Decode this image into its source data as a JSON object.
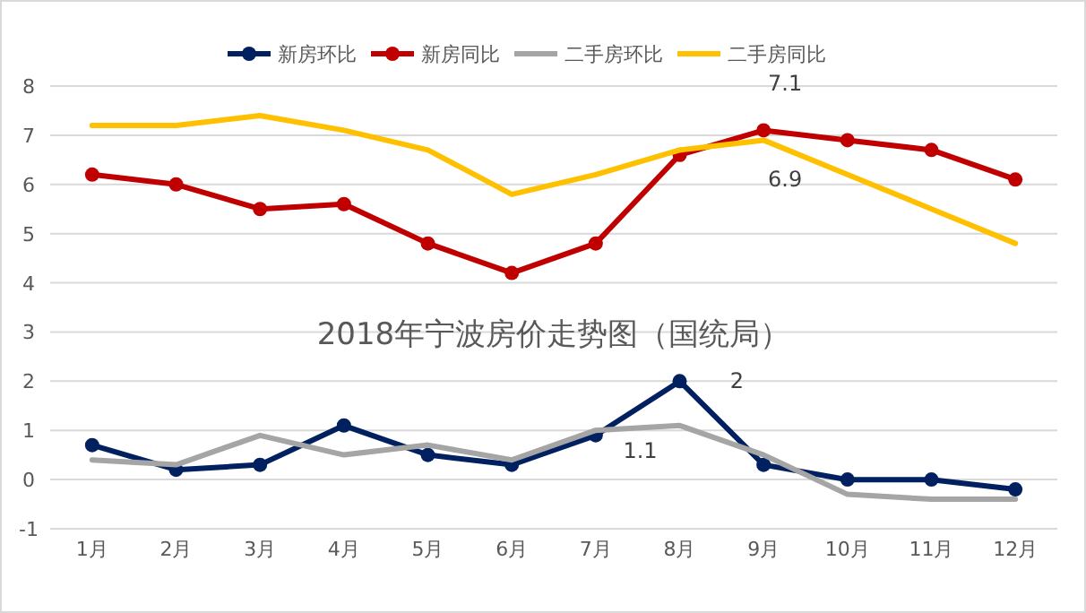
{
  "chart_data": {
    "type": "line",
    "title": "2018年宁波房价走势图（国统局）",
    "categories": [
      "1月",
      "2月",
      "3月",
      "4月",
      "5月",
      "6月",
      "7月",
      "8月",
      "9月",
      "10月",
      "11月",
      "12月"
    ],
    "series": [
      {
        "name": "新房环比",
        "color": "#002060",
        "marker": "circle",
        "values": [
          0.7,
          0.2,
          0.3,
          1.1,
          0.5,
          0.3,
          0.9,
          2,
          0.3,
          0,
          0,
          -0.2
        ]
      },
      {
        "name": "新房同比",
        "color": "#c00000",
        "marker": "circle",
        "values": [
          6.2,
          6.0,
          5.5,
          5.6,
          4.8,
          4.2,
          4.8,
          6.6,
          7.1,
          6.9,
          6.7,
          6.1
        ]
      },
      {
        "name": "二手房环比",
        "color": "#a5a5a5",
        "marker": "none",
        "values": [
          0.4,
          0.3,
          0.9,
          0.5,
          0.7,
          0.4,
          1.0,
          1.1,
          0.5,
          -0.3,
          -0.4,
          -0.4
        ]
      },
      {
        "name": "二手房同比",
        "color": "#ffc000",
        "marker": "none",
        "values": [
          7.2,
          7.2,
          7.4,
          7.1,
          6.7,
          5.8,
          6.2,
          6.7,
          6.9,
          6.2,
          5.5,
          4.8
        ]
      }
    ],
    "ylim": [
      -1,
      8
    ],
    "yticks": [
      -1,
      0,
      1,
      2,
      3,
      4,
      5,
      6,
      7,
      8
    ],
    "grid": "y",
    "legend": "top",
    "annotations": [
      {
        "text": "2",
        "x": "8月",
        "y": 2
      },
      {
        "text": "1.1",
        "x": "8月",
        "y": 1.1
      },
      {
        "text": "7.1",
        "x": "9月",
        "y": 7.1
      },
      {
        "text": "6.9",
        "x": "9月",
        "y": 6.9
      }
    ]
  }
}
